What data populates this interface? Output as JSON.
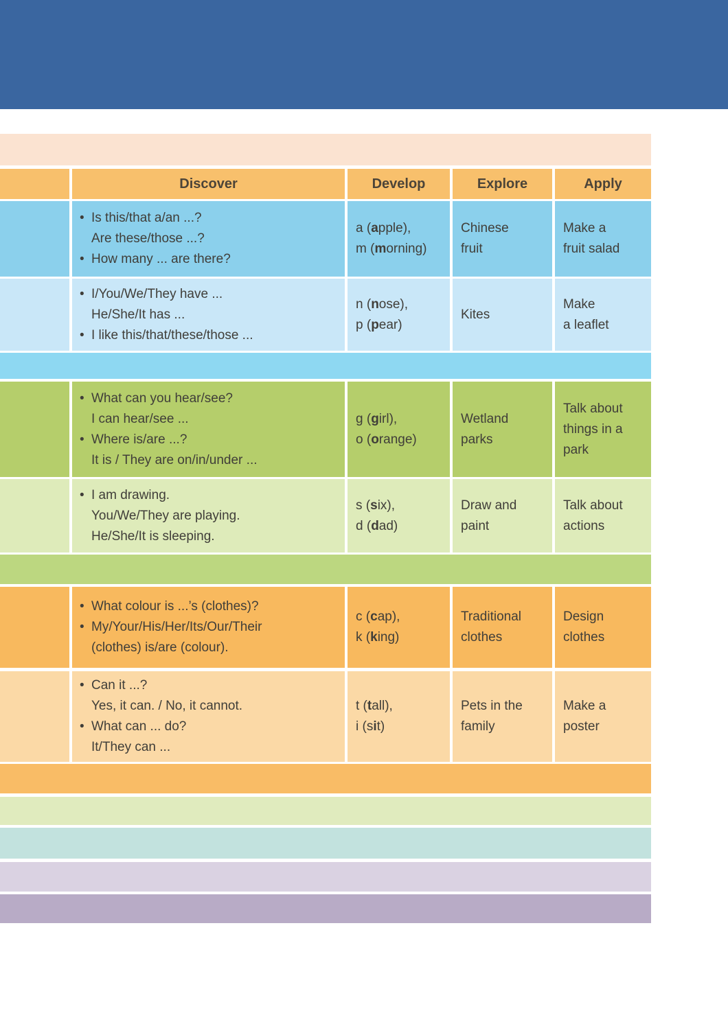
{
  "palette": {
    "banner": "#3a66a0",
    "cream": "#fbe3d1",
    "header_bg": "#f8c06c",
    "band_blue": "#8ed8f2",
    "band_green": "#bcd780",
    "band_orange": "#f9bc66",
    "band_celadon": "#e0ebbe",
    "band_teal": "#c2e2de",
    "band_lavender": "#dad2e2",
    "band_purple": "#b8abc6"
  },
  "table": {
    "bullet": "•",
    "header": {
      "columns": [
        "Discover",
        "Develop",
        "Explore",
        "Apply"
      ]
    },
    "sections": [
      {
        "name": "unit-section-blue",
        "rows": [
          {
            "bg": "#8bd0ec",
            "discover": [
              {
                "bullet": true,
                "text": "Is this/that a/an ...?"
              },
              {
                "bullet": false,
                "text": "Are these/those ...?"
              },
              {
                "bullet": true,
                "text": "How many ... are there?"
              }
            ],
            "develop": [
              {
                "pre": "a (",
                "bold": "a",
                "post": "pple),"
              },
              {
                "pre": "m (",
                "bold": "m",
                "post": "orning)"
              }
            ],
            "explore": [
              "Chinese",
              "fruit"
            ],
            "apply": [
              "Make a",
              "fruit salad"
            ]
          },
          {
            "bg": "#c9e7f8",
            "discover": [
              {
                "bullet": true,
                "text": "I/You/We/They have ..."
              },
              {
                "bullet": false,
                "text": "He/She/It has ..."
              },
              {
                "bullet": true,
                "text": "I like this/that/these/those ..."
              }
            ],
            "develop": [
              {
                "pre": "n (",
                "bold": "n",
                "post": "ose),"
              },
              {
                "pre": "p (",
                "bold": "p",
                "post": "ear)"
              }
            ],
            "explore": [
              "Kites"
            ],
            "apply": [
              "Make",
              "a leaflet"
            ]
          }
        ]
      },
      {
        "name": "unit-section-green",
        "rows": [
          {
            "bg": "#b5ce6b",
            "discover": [
              {
                "bullet": true,
                "text": "What can you hear/see?"
              },
              {
                "bullet": false,
                "text": "I can hear/see ..."
              },
              {
                "bullet": true,
                "text": "Where is/are ...?"
              },
              {
                "bullet": false,
                "text": "It is / They are on/in/under ..."
              }
            ],
            "develop": [
              {
                "pre": "g (",
                "bold": "g",
                "post": "irl),"
              },
              {
                "pre": "o (",
                "bold": "o",
                "post": "range)"
              }
            ],
            "explore": [
              "Wetland",
              "parks"
            ],
            "apply": [
              "Talk about",
              "things in a",
              "park"
            ]
          },
          {
            "bg": "#deebba",
            "discover": [
              {
                "bullet": true,
                "text": "I am drawing."
              },
              {
                "bullet": false,
                "text": "You/We/They are playing."
              },
              {
                "bullet": false,
                "text": "He/She/It is sleeping."
              }
            ],
            "develop": [
              {
                "pre": "s (",
                "bold": "s",
                "post": "ix),"
              },
              {
                "pre": "d (",
                "bold": "d",
                "post": "ad)"
              }
            ],
            "explore": [
              "Draw and",
              "paint"
            ],
            "apply": [
              "Talk about",
              "actions"
            ]
          }
        ]
      },
      {
        "name": "unit-section-orange",
        "rows": [
          {
            "bg": "#f8b95e",
            "discover": [
              {
                "bullet": true,
                "text": "What colour is ...’s  (clothes)?"
              },
              {
                "bullet": true,
                "text": "My/Your/His/Her/Its/Our/Their"
              },
              {
                "bullet": false,
                "text": "(clothes) is/are (colour)."
              }
            ],
            "develop": [
              {
                "pre": "c (",
                "bold": "c",
                "post": "ap),"
              },
              {
                "pre": "k (",
                "bold": "k",
                "post": "ing)"
              }
            ],
            "explore": [
              "Traditional",
              "clothes"
            ],
            "apply": [
              "Design",
              "clothes"
            ]
          },
          {
            "bg": "#fbd9a6",
            "discover": [
              {
                "bullet": true,
                "text": "Can it ...?"
              },
              {
                "bullet": false,
                "text": "Yes, it can. / No, it cannot."
              },
              {
                "bullet": true,
                "text": "What can ... do?"
              },
              {
                "bullet": false,
                "text": "It/They can ..."
              }
            ],
            "develop": [
              {
                "pre": "t (",
                "bold": "t",
                "post": "all),"
              },
              {
                "pre": "i (s",
                "bold": "i",
                "post": "t)"
              }
            ],
            "explore": [
              "Pets in the",
              "family"
            ],
            "apply": [
              "Make a",
              "poster"
            ]
          }
        ]
      }
    ]
  }
}
